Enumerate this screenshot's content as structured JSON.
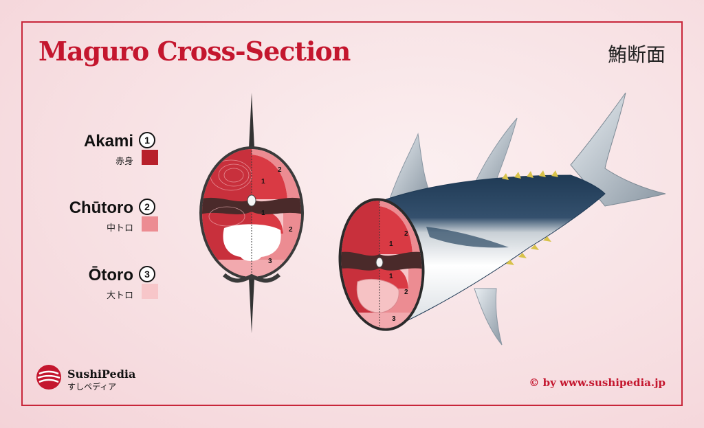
{
  "title": "Maguro Cross-Section",
  "title_jp": "鮪断面",
  "colors": {
    "akami": "#b8202b",
    "chutoro": "#ec8c92",
    "otoro": "#f7c6c9",
    "brand_red": "#c4162e"
  },
  "legend": [
    {
      "name": "Akami",
      "jp": "赤身",
      "number": "1"
    },
    {
      "name": "Chūtoro",
      "jp": "中トロ",
      "number": "2"
    },
    {
      "name": "Ōtoro",
      "jp": "大トロ",
      "number": "3"
    }
  ],
  "cross_section_labels": [
    "1",
    "1",
    "2",
    "2",
    "3"
  ],
  "fish_labels": [
    "1",
    "2",
    "1",
    "2",
    "3"
  ],
  "brand": {
    "name": "SushiPedia",
    "jp": "すしペディア",
    "icon": "sushi-roll-logo"
  },
  "credit": "© by www.sushipedia.jp"
}
